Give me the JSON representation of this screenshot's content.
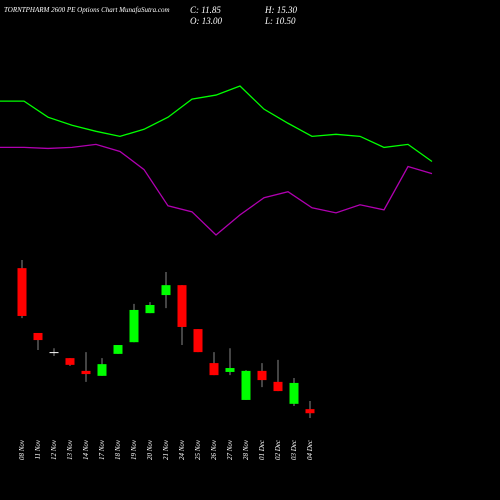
{
  "chart_data": {
    "type": "candlestick",
    "title": "TORNTPHARM 2600  PE Options Chart MunafaSutra.com",
    "ohlc_labels": [
      "C: 11.85",
      "H: 15.30",
      "O: 13.00",
      "L: 10.50"
    ],
    "categories": [
      "08 Nov",
      "11 Nov",
      "12 Nov",
      "13 Nov",
      "14 Nov",
      "17 Nov",
      "18 Nov",
      "19 Nov",
      "20 Nov",
      "21 Nov",
      "24 Nov",
      "25 Nov",
      "26 Nov",
      "27 Nov",
      "28 Nov",
      "01 Dec",
      "02 Dec",
      "03 Dec",
      "04 Dec"
    ],
    "open": [
      52.8,
      34.5,
      29.1,
      27.4,
      23.8,
      22.4,
      28.6,
      31.9,
      40.1,
      45.2,
      48.0,
      35.6,
      26.0,
      23.5,
      15.6,
      23.8,
      20.7,
      14.5,
      13.0
    ],
    "high": [
      55.1,
      34.5,
      30.2,
      27.4,
      29.1,
      27.4,
      31.1,
      42.7,
      43.2,
      51.7,
      48.0,
      35.6,
      29.1,
      30.2,
      24.0,
      26.0,
      26.9,
      21.8,
      15.3
    ],
    "low": [
      38.7,
      29.7,
      28.0,
      25.2,
      20.7,
      22.4,
      28.6,
      31.9,
      40.1,
      41.5,
      31.1,
      29.1,
      22.6,
      22.6,
      15.6,
      19.2,
      18.1,
      13.9,
      10.5
    ],
    "close": [
      39.3,
      32.5,
      29.1,
      25.5,
      22.9,
      25.7,
      31.1,
      41.0,
      42.4,
      48.0,
      36.2,
      29.1,
      22.6,
      24.6,
      23.8,
      21.2,
      18.1,
      20.4,
      11.85
    ],
    "up_color": "#00ff00",
    "down_color": "#ff0000",
    "lines": [
      {
        "color": "#00ff00",
        "values": [
          198,
          198,
          182,
          174,
          168,
          163,
          170,
          182,
          200,
          204,
          213,
          190,
          176,
          163,
          165,
          163,
          152,
          155,
          138
        ]
      },
      {
        "color": "#b000b0",
        "values": [
          152,
          152,
          151,
          152,
          155,
          148,
          130,
          94,
          88,
          65,
          85,
          102,
          108,
          92,
          87,
          95,
          90,
          133,
          126
        ]
      }
    ]
  }
}
